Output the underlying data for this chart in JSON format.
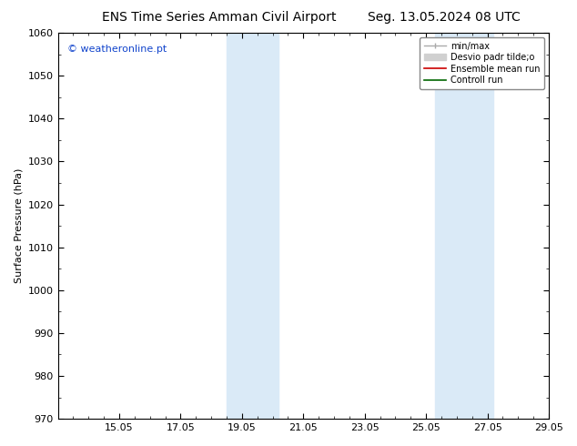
{
  "title_left": "ENS Time Series Amman Civil Airport",
  "title_right": "Seg. 13.05.2024 08 UTC",
  "ylabel": "Surface Pressure (hPa)",
  "ylim": [
    970,
    1060
  ],
  "yticks": [
    970,
    980,
    990,
    1000,
    1010,
    1020,
    1030,
    1040,
    1050,
    1060
  ],
  "xtick_labels": [
    "15.05",
    "17.05",
    "19.05",
    "21.05",
    "23.05",
    "25.05",
    "27.05",
    "29.05"
  ],
  "xtick_positions": [
    2,
    4,
    6,
    8,
    10,
    12,
    14,
    16
  ],
  "xlim": [
    0,
    16
  ],
  "shaded_regions": [
    {
      "x_start": 5.5,
      "x_end": 7.2
    },
    {
      "x_start": 12.3,
      "x_end": 14.2
    }
  ],
  "shaded_color": "#daeaf7",
  "background_color": "#ffffff",
  "watermark_text": "© weatheronline.pt",
  "watermark_color": "#1144cc",
  "legend_labels": [
    "min/max",
    "Desvio padr tilde;o",
    "Ensemble mean run",
    "Controll run"
  ],
  "legend_colors_line": [
    "#aaaaaa",
    "#cccccc",
    "#cc0000",
    "#006600"
  ],
  "title_fontsize": 10,
  "tick_fontsize": 8,
  "ylabel_fontsize": 8,
  "watermark_fontsize": 8,
  "legend_fontsize": 7
}
